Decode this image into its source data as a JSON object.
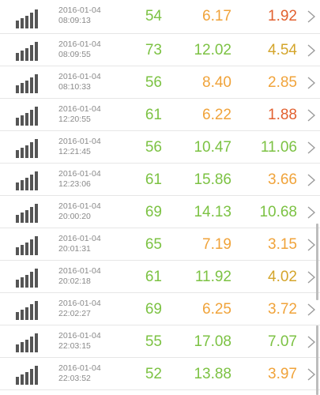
{
  "rows": [
    {
      "date": "2016-01-04",
      "time": "08:09:13",
      "ping": "54",
      "down": "6.17",
      "up": "1.92"
    },
    {
      "date": "2016-01-04",
      "time": "08:09:55",
      "ping": "73",
      "down": "12.02",
      "up": "4.54"
    },
    {
      "date": "2016-01-04",
      "time": "08:10:33",
      "ping": "56",
      "down": "8.40",
      "up": "2.85"
    },
    {
      "date": "2016-01-04",
      "time": "12:20:55",
      "ping": "61",
      "down": "6.22",
      "up": "1.88"
    },
    {
      "date": "2016-01-04",
      "time": "12:21:45",
      "ping": "56",
      "down": "10.47",
      "up": "11.06"
    },
    {
      "date": "2016-01-04",
      "time": "12:23:06",
      "ping": "61",
      "down": "15.86",
      "up": "3.66"
    },
    {
      "date": "2016-01-04",
      "time": "20:00:20",
      "ping": "69",
      "down": "14.13",
      "up": "10.68"
    },
    {
      "date": "2016-01-04",
      "time": "20:01:31",
      "ping": "65",
      "down": "7.19",
      "up": "3.15"
    },
    {
      "date": "2016-01-04",
      "time": "20:02:18",
      "ping": "61",
      "down": "11.92",
      "up": "4.02"
    },
    {
      "date": "2016-01-04",
      "time": "22:02:27",
      "ping": "69",
      "down": "6.25",
      "up": "3.72"
    },
    {
      "date": "2016-01-04",
      "time": "22:03:15",
      "ping": "55",
      "down": "17.08",
      "up": "7.07"
    },
    {
      "date": "2016-01-04",
      "time": "22:03:52",
      "ping": "52",
      "down": "13.88",
      "up": "3.97"
    }
  ],
  "colors": {
    "green": "#7cc243",
    "orange": "#f0a33a",
    "mustard": "#d4a52b",
    "red": "#e2602f",
    "signal": "#555555",
    "chevron": "#9a9a9a"
  },
  "icons": {
    "signal": "signal-bars-icon",
    "chevron": "chevron-right-icon"
  }
}
